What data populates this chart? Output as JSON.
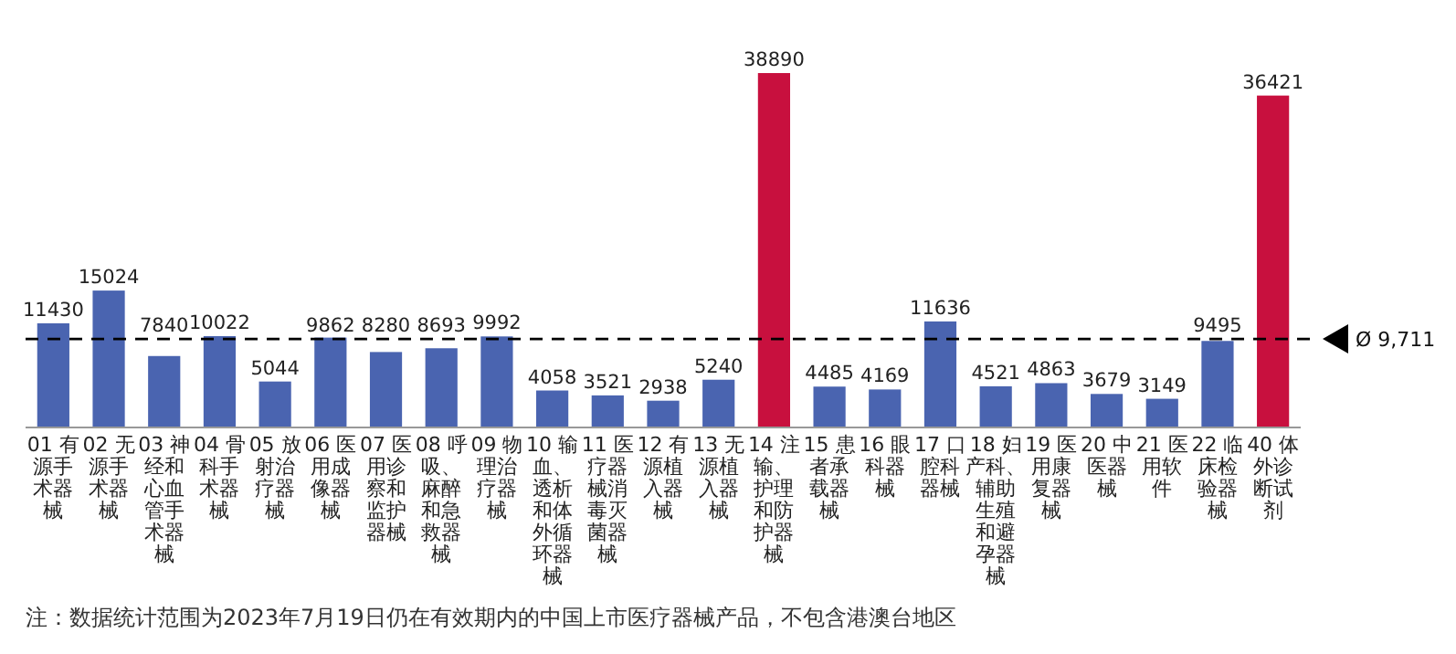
{
  "chart_data": {
    "type": "bar",
    "categories": [
      "01 有源手术器械",
      "02 无源手术器械",
      "03 神经和心血管手术器械",
      "04 骨科手术器械",
      "05 放射治疗器械",
      "06 医用成像器械",
      "07 医用诊察和监护器械",
      "08 呼吸、麻醉和急救器械",
      "09 物理治疗器械",
      "10 输血、透析和体外循环器械",
      "11 医疗器械消毒灭菌器械",
      "12 有源植入器械",
      "13 无源植入器械",
      "14 注输、护理和防护器械",
      "15 患者承载器械",
      "16 眼科器械",
      "17 口腔科器械",
      "18 妇产科、辅助生殖和避孕器械",
      "19 医用康复器械",
      "20 中医器械",
      "21 医用软件",
      "22 临床检验器械",
      "40 体外诊断试剂"
    ],
    "values": [
      11430,
      15024,
      7840,
      10022,
      5044,
      9862,
      8280,
      8693,
      9992,
      4058,
      3521,
      2938,
      5240,
      38890,
      4485,
      4169,
      11636,
      4521,
      4863,
      3679,
      3149,
      9495,
      36421
    ],
    "colors": [
      "#4a64b0",
      "#4a64b0",
      "#4a64b0",
      "#4a64b0",
      "#4a64b0",
      "#4a64b0",
      "#4a64b0",
      "#4a64b0",
      "#4a64b0",
      "#4a64b0",
      "#4a64b0",
      "#4a64b0",
      "#4a64b0",
      "#c8103e",
      "#4a64b0",
      "#4a64b0",
      "#4a64b0",
      "#4a64b0",
      "#4a64b0",
      "#4a64b0",
      "#4a64b0",
      "#4a64b0",
      "#c8103e"
    ],
    "data_labels": true,
    "ref_lines": [
      {
        "axis": "y",
        "value": 9711,
        "label": "Ø 9,711",
        "color": "#000000",
        "line_style": "dashed"
      }
    ],
    "annotations": [
      "注：数据统计范围为2023年7月19日仍在有效期内的中国上市医疗器械产品，不包含港澳台地区"
    ]
  }
}
